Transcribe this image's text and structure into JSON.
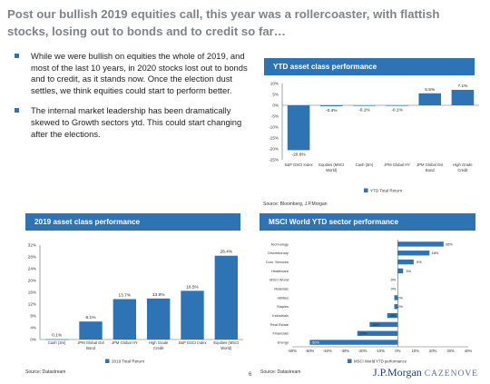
{
  "slide": {
    "title": "Post our bullish 2019 equities call, this year was a rollercoaster, with flattish stocks, losing out to bonds and to credit so far…",
    "bullets": [
      "While we were bullish on equities the whole of 2019, and most of the last 10 years, in 2020 stocks lost out to bonds and to credit, as it stands now. Once the election dust settles, we think equities could start to perform better.",
      "The internal market leadership has been dramatically skewed to Growth sectors ytd. This could start changing after the elections."
    ],
    "page_number": "6",
    "brand": {
      "main": "J.P.Morgan",
      "sub": "CAZENOVE"
    }
  },
  "panels": {
    "ytd": {
      "title": "YTD asset class performance",
      "source": "Source: Bloomberg, J.P.Morgan"
    },
    "y2019": {
      "title": "2019 asset class performance",
      "source": "Source: Datastream"
    },
    "msci": {
      "title": "MSCI World YTD sector performance",
      "source": "Source: Datastream"
    }
  },
  "colors": {
    "accent": "#2e74b5",
    "bar": "#2e74b5",
    "title_gray": "#7f8388"
  },
  "chart_data": [
    {
      "type": "bar",
      "title": "YTD asset class performance",
      "categories": [
        "S&P GSCI Index",
        "Equities (MSCI World)",
        "Cash (3m)",
        "JPM Global HY",
        "JPM Global Gvt Bond",
        "High Grade Credit"
      ],
      "series": [
        {
          "name": "YTD Total Return",
          "values": [
            -20.6,
            -0.4,
            -0.1,
            -0.1,
            5.5,
            7.1
          ]
        }
      ],
      "value_labels": [
        "-20.6%",
        "-0.4%",
        "-0.1%",
        "-0.1%",
        "5.5%",
        "7.1%"
      ],
      "ylim": [
        -25,
        10
      ],
      "yticks": [
        "10%",
        "5%",
        "0%",
        "-5%",
        "-10%",
        "-15%",
        "-20%",
        "-25%"
      ],
      "legend": "bottom"
    },
    {
      "type": "bar",
      "title": "2019 asset class performance",
      "categories": [
        "Cash (3m)",
        "JPM Global Gvt Bond",
        "JPM Global HY",
        "High Grade Credit",
        "S&P GSCI Index",
        "Equities (MSCI World)"
      ],
      "series": [
        {
          "name": "2019 Total Return",
          "values": [
            0.1,
            6.1,
            13.7,
            13.9,
            16.5,
            28.4
          ]
        }
      ],
      "value_labels": [
        "0.1%",
        "6.1%",
        "13.7%",
        "13.9%",
        "16.5%",
        "28.4%"
      ],
      "ylim": [
        0,
        32
      ],
      "yticks": [
        "32%",
        "28%",
        "24%",
        "20%",
        "16%",
        "12%",
        "8%",
        "4%",
        "0%"
      ],
      "legend": "bottom"
    },
    {
      "type": "bar",
      "orientation": "horizontal",
      "title": "MSCI World YTD sector performance",
      "categories": [
        "Technology",
        "Discretionary",
        "Com. Services",
        "Healthcare",
        "MSCI World",
        "Materials",
        "Utilities",
        "Staples",
        "Industrials",
        "Real Estate",
        "Financials",
        "Energy"
      ],
      "series": [
        {
          "name": "MSCI World YTD performance",
          "values": [
            26,
            18,
            9,
            3,
            0,
            0,
            -2,
            -2,
            -6,
            -16,
            -23,
            -50
          ]
        }
      ],
      "value_labels": [
        "26%",
        "18%",
        "9%",
        "3%",
        "0%",
        "0%",
        "-2%",
        "-2%",
        "-6%",
        "-16%",
        "-23%",
        "-50%"
      ],
      "xlim": [
        -60,
        40
      ],
      "xticks": [
        "-60%",
        "-50%",
        "-40%",
        "-30%",
        "-20%",
        "-10%",
        "0%",
        "10%",
        "20%",
        "30%",
        "40%"
      ],
      "legend": "bottom"
    }
  ]
}
